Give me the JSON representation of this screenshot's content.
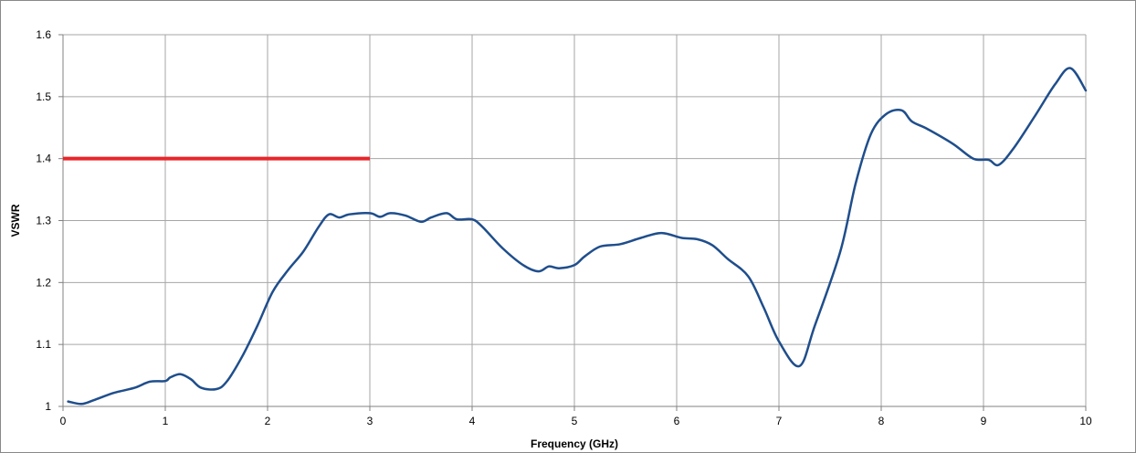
{
  "chart_data": {
    "type": "line",
    "xlabel": "Frequency (GHz)",
    "ylabel": "VSWR",
    "xlim": [
      0,
      10
    ],
    "ylim": [
      1,
      1.6
    ],
    "x_ticks": [
      "0",
      "1",
      "2",
      "3",
      "4",
      "5",
      "6",
      "7",
      "8",
      "9",
      "10"
    ],
    "y_ticks": [
      "1",
      "1.1",
      "1.2",
      "1.3",
      "1.4",
      "1.5",
      "1.6"
    ],
    "grid": true,
    "series": [
      {
        "color": "#1f4e8c",
        "x": [
          0.05,
          0.18,
          0.3,
          0.5,
          0.7,
          0.85,
          1.0,
          1.05,
          1.15,
          1.25,
          1.35,
          1.5,
          1.6,
          1.75,
          1.9,
          2.05,
          2.2,
          2.35,
          2.5,
          2.6,
          2.7,
          2.8,
          3.0,
          3.1,
          3.2,
          3.35,
          3.5,
          3.6,
          3.75,
          3.85,
          4.0,
          4.1,
          4.3,
          4.5,
          4.65,
          4.75,
          4.85,
          5.0,
          5.1,
          5.25,
          5.45,
          5.65,
          5.85,
          6.05,
          6.2,
          6.35,
          6.5,
          6.7,
          6.85,
          7.0,
          7.2,
          7.35,
          7.6,
          7.75,
          7.9,
          8.05,
          8.2,
          8.3,
          8.45,
          8.7,
          8.9,
          9.05,
          9.15,
          9.3,
          9.5,
          9.7,
          9.85,
          10.0
        ],
        "values": [
          1.008,
          1.004,
          1.01,
          1.022,
          1.03,
          1.04,
          1.041,
          1.047,
          1.052,
          1.044,
          1.03,
          1.028,
          1.04,
          1.08,
          1.13,
          1.185,
          1.22,
          1.25,
          1.29,
          1.31,
          1.305,
          1.31,
          1.312,
          1.306,
          1.312,
          1.308,
          1.298,
          1.305,
          1.312,
          1.302,
          1.302,
          1.29,
          1.255,
          1.228,
          1.218,
          1.226,
          1.223,
          1.228,
          1.242,
          1.258,
          1.262,
          1.272,
          1.28,
          1.272,
          1.27,
          1.26,
          1.238,
          1.21,
          1.16,
          1.105,
          1.065,
          1.13,
          1.25,
          1.36,
          1.44,
          1.472,
          1.478,
          1.46,
          1.448,
          1.424,
          1.4,
          1.398,
          1.39,
          1.418,
          1.468,
          1.52,
          1.546,
          1.51
        ]
      }
    ],
    "reference_line": {
      "color": "#e8262b",
      "x": [
        0,
        3
      ],
      "values": [
        1.4,
        1.4
      ]
    }
  }
}
